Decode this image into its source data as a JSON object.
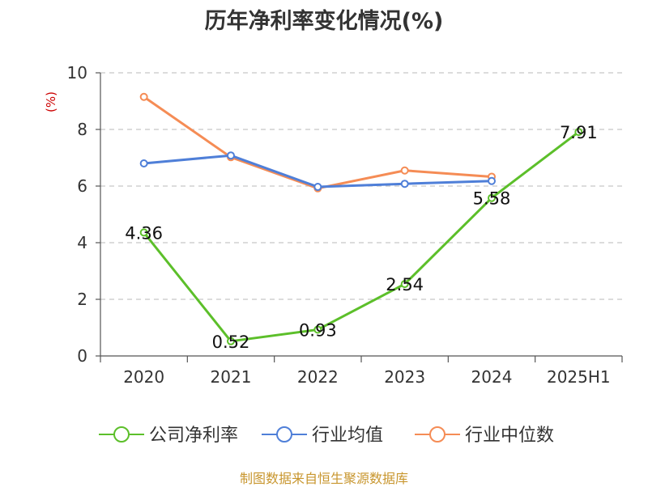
{
  "chart_data": {
    "type": "line",
    "title": "历年净利率变化情况(%)",
    "ylabel": "(%)",
    "categories": [
      "2020",
      "2021",
      "2022",
      "2023",
      "2024",
      "2025H1"
    ],
    "ylim": [
      0,
      10
    ],
    "yticks": [
      0,
      2,
      4,
      6,
      8,
      10
    ],
    "grid": true,
    "legend_position": "bottom",
    "series": [
      {
        "name": "公司净利率",
        "color": "#5cbf2a",
        "values": [
          4.36,
          0.52,
          0.93,
          2.54,
          5.58,
          7.91
        ],
        "labels": [
          "4.36",
          "0.52",
          "0.93",
          "2.54",
          "5.58",
          "7.91"
        ]
      },
      {
        "name": "行业均值",
        "color": "#4f7fd8",
        "values": [
          6.8,
          7.08,
          5.97,
          6.08,
          6.18,
          null
        ]
      },
      {
        "name": "行业中位数",
        "color": "#f58c55",
        "values": [
          9.15,
          7.02,
          5.92,
          6.55,
          6.33,
          null
        ]
      }
    ]
  },
  "footer": {
    "source": "制图数据来自恒生聚源数据库"
  }
}
